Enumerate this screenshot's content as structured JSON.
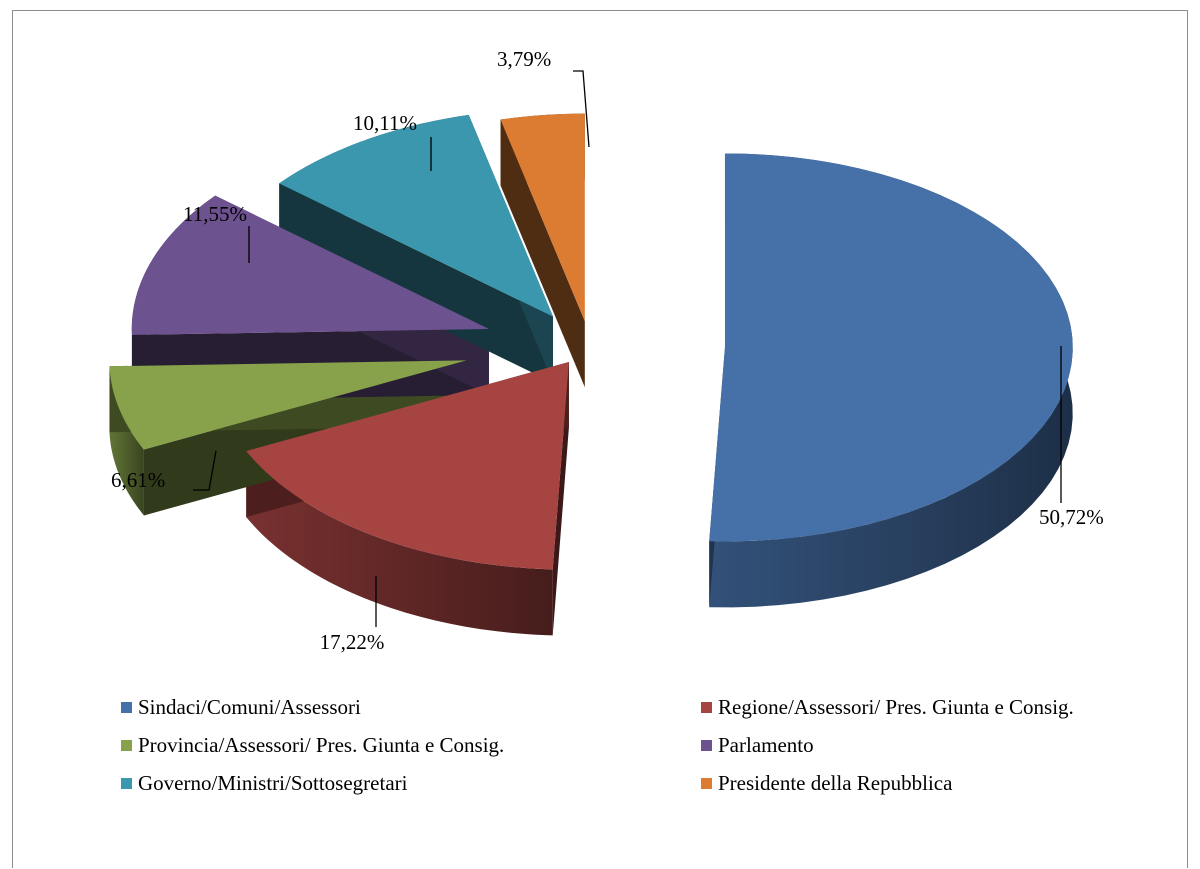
{
  "chart_data": {
    "type": "pie",
    "style": "3d-exploded",
    "title": "",
    "slices": [
      {
        "label": "Sindaci/Comuni/Assessori",
        "value": 50.72,
        "display": "50,72%",
        "color": "#4670a8"
      },
      {
        "label": "Regione/Assessori/ Pres. Giunta e Consig.",
        "value": 17.22,
        "display": "17,22%",
        "color": "#a64442"
      },
      {
        "label": "Provincia/Assessori/ Pres. Giunta e Consig.",
        "value": 6.61,
        "display": "6,61%",
        "color": "#87a24a"
      },
      {
        "label": "Parlamento",
        "value": 11.55,
        "display": "11,55%",
        "color": "#6d5290"
      },
      {
        "label": "Governo/Ministri/Sottosegretari",
        "value": 10.11,
        "display": "10,11%",
        "color": "#3a97ae"
      },
      {
        "label": "Presidente della Repubblica",
        "value": 3.79,
        "display": "3,79%",
        "color": "#dc7c32"
      }
    ],
    "legend_position": "bottom"
  }
}
